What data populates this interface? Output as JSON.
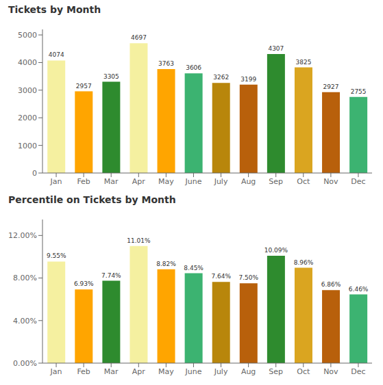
{
  "chart_data": [
    {
      "type": "bar",
      "title": "Tickets by Month",
      "categories": [
        "Jan",
        "Feb",
        "Mar",
        "Apr",
        "May",
        "June",
        "July",
        "Aug",
        "Sep",
        "Oct",
        "Nov",
        "Dec"
      ],
      "values": [
        4074,
        2957,
        3305,
        4697,
        3763,
        3606,
        3262,
        3199,
        4307,
        3825,
        2927,
        2755
      ],
      "colors": [
        "#F5F0A0",
        "#FFA500",
        "#2E8B2E",
        "#F5F0A0",
        "#FFA500",
        "#3CB371",
        "#B8860B",
        "#B8600B",
        "#2E8B2E",
        "#DAA520",
        "#B8600B",
        "#3CB371"
      ],
      "ylim": [
        0,
        5200
      ],
      "yticks": [
        0,
        1000,
        2000,
        3000,
        4000,
        5000
      ],
      "data_labels": true
    },
    {
      "type": "bar",
      "title": "Percentile on Tickets by Month",
      "categories": [
        "Jan",
        "Feb",
        "Mar",
        "Apr",
        "May",
        "June",
        "July",
        "Aug",
        "Sep",
        "Oct",
        "Nov",
        "Dec"
      ],
      "values": [
        0.0955,
        0.0693,
        0.0774,
        0.1101,
        0.0882,
        0.0845,
        0.0764,
        0.075,
        0.1009,
        0.0896,
        0.0686,
        0.0646
      ],
      "value_labels": [
        "9.55%",
        "6.93%",
        "7.74%",
        "11.01%",
        "8.82%",
        "8.45%",
        "7.64%",
        "7.50%",
        "10.09%",
        "8.96%",
        "6.86%",
        "6.46%"
      ],
      "colors": [
        "#F5F0A0",
        "#FFA500",
        "#2E8B2E",
        "#F5F0A0",
        "#FFA500",
        "#3CB371",
        "#B8860B",
        "#B8600B",
        "#2E8B2E",
        "#DAA520",
        "#B8600B",
        "#3CB371"
      ],
      "ylim": [
        0,
        0.135
      ],
      "yticks": [
        {
          "value": 0.0,
          "label": "0.00%"
        },
        {
          "value": 0.04,
          "label": "4.00%"
        },
        {
          "value": 0.08,
          "label": "8.00%"
        },
        {
          "value": 0.12,
          "label": "12.00%"
        }
      ],
      "data_labels": true
    }
  ]
}
